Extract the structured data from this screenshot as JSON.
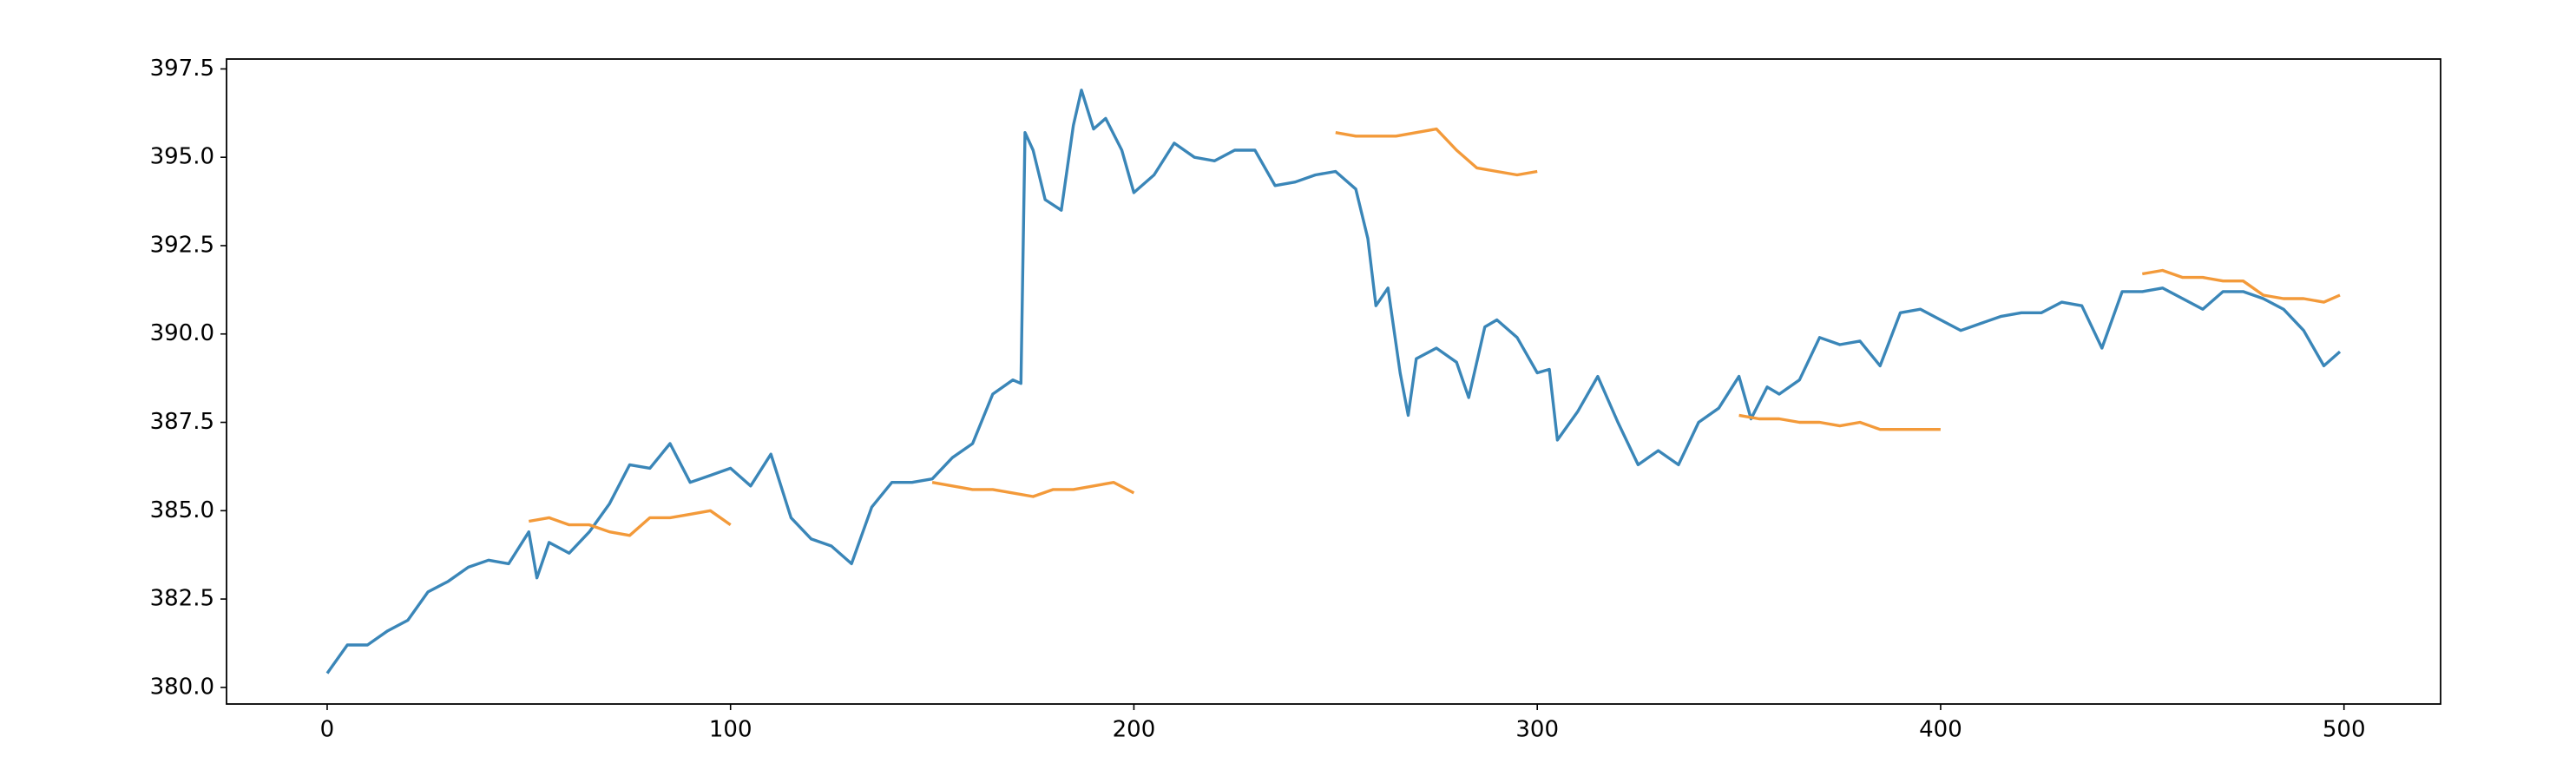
{
  "chart_data": {
    "type": "line",
    "xlim": [
      -24.95,
      523.95
    ],
    "ylim": [
      379.53,
      397.78
    ],
    "xticks": [
      0,
      100,
      200,
      300,
      400,
      500
    ],
    "yticks": [
      {
        "value": 380,
        "label": "380.0"
      },
      382.5,
      {
        "value": 385,
        "label": "385.0"
      },
      387.5,
      {
        "value": 390,
        "label": "390.0"
      },
      392.5,
      {
        "value": 395,
        "label": "395.0"
      },
      397.5
    ],
    "grid": false,
    "series": [
      {
        "color": "#3a86b8",
        "x": [
          0,
          5,
          10,
          15,
          20,
          25,
          30,
          35,
          40,
          45,
          50,
          52,
          55,
          60,
          65,
          70,
          75,
          80,
          85,
          90,
          95,
          100,
          105,
          110,
          115,
          120,
          125,
          130,
          135,
          140,
          145,
          150,
          155,
          160,
          165,
          170,
          172,
          173,
          175,
          178,
          182,
          185,
          187,
          190,
          193,
          197,
          200,
          205,
          210,
          215,
          220,
          225,
          230,
          235,
          240,
          245,
          250,
          255,
          258,
          260,
          263,
          266,
          268,
          270,
          275,
          280,
          283,
          287,
          290,
          295,
          300,
          303,
          305,
          310,
          315,
          320,
          325,
          330,
          335,
          340,
          345,
          350,
          353,
          357,
          360,
          365,
          370,
          375,
          380,
          385,
          390,
          395,
          400,
          405,
          410,
          415,
          420,
          425,
          430,
          435,
          440,
          445,
          450,
          455,
          460,
          465,
          470,
          475,
          480,
          485,
          490,
          495,
          499
        ],
        "values": [
          380.4,
          381.2,
          381.2,
          381.6,
          381.9,
          382.7,
          383.0,
          383.4,
          383.6,
          383.5,
          384.4,
          383.1,
          384.1,
          383.8,
          384.4,
          385.2,
          386.3,
          386.2,
          386.9,
          385.8,
          386.0,
          386.2,
          385.7,
          386.6,
          384.8,
          384.2,
          384.0,
          383.5,
          385.1,
          385.8,
          385.8,
          385.9,
          386.5,
          386.9,
          388.3,
          388.7,
          388.6,
          395.7,
          395.2,
          393.8,
          393.5,
          395.9,
          396.9,
          395.8,
          396.1,
          395.2,
          394.0,
          394.5,
          395.4,
          395.0,
          394.9,
          395.2,
          395.2,
          394.2,
          394.3,
          394.5,
          394.6,
          394.1,
          392.7,
          390.8,
          391.3,
          388.9,
          387.7,
          389.3,
          389.6,
          389.2,
          388.2,
          390.2,
          390.4,
          389.9,
          388.9,
          389.0,
          387.0,
          387.8,
          388.8,
          387.5,
          386.3,
          386.7,
          386.3,
          387.5,
          387.9,
          388.8,
          387.6,
          388.5,
          388.3,
          388.7,
          389.9,
          389.7,
          389.8,
          389.1,
          390.6,
          390.7,
          390.4,
          390.1,
          390.3,
          390.5,
          390.6,
          390.6,
          390.9,
          390.8,
          389.6,
          391.2,
          391.2,
          391.3,
          391.0,
          390.7,
          391.2,
          391.2,
          391.0,
          390.7,
          390.1,
          389.1,
          389.5
        ]
      },
      {
        "color": "#f39a3a",
        "x": [
          50,
          55,
          60,
          65,
          70,
          75,
          80,
          85,
          90,
          95,
          100,
          125,
          150,
          155,
          160,
          165,
          170,
          175,
          180,
          185,
          190,
          195,
          200,
          225,
          250,
          255,
          260,
          265,
          270,
          275,
          280,
          285,
          290,
          295,
          300,
          325,
          350,
          355,
          360,
          365,
          370,
          375,
          380,
          385,
          390,
          395,
          400,
          425,
          450,
          455,
          460,
          465,
          470,
          475,
          480,
          485,
          490,
          495,
          499
        ],
        "values": [
          384.7,
          384.8,
          384.6,
          384.6,
          384.4,
          384.3,
          384.8,
          384.8,
          384.9,
          385.0,
          384.6,
          null,
          385.8,
          385.7,
          385.6,
          385.6,
          385.5,
          385.4,
          385.6,
          385.6,
          385.7,
          385.8,
          385.5,
          null,
          395.7,
          395.6,
          395.6,
          395.6,
          395.7,
          395.8,
          395.2,
          394.7,
          394.6,
          394.5,
          394.6,
          null,
          387.7,
          387.6,
          387.6,
          387.5,
          387.5,
          387.4,
          387.5,
          387.3,
          387.3,
          387.3,
          387.3,
          null,
          391.7,
          391.8,
          391.6,
          391.6,
          391.5,
          391.5,
          391.1,
          391.0,
          391.0,
          390.9,
          391.1
        ]
      }
    ]
  }
}
